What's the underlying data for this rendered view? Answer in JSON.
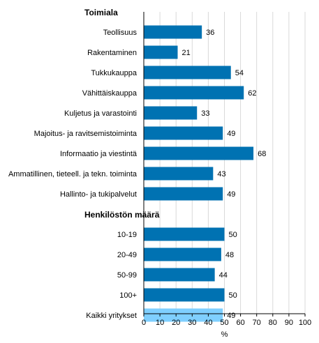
{
  "chart_data": {
    "type": "bar",
    "orientation": "horizontal",
    "groups": [
      {
        "title": "Toimiala",
        "items": [
          {
            "label": "Teollisuus",
            "value": 36
          },
          {
            "label": "Rakentaminen",
            "value": 21
          },
          {
            "label": "Tukkukauppa",
            "value": 54
          },
          {
            "label": "Vähittäiskauppa",
            "value": 62
          },
          {
            "label": "Kuljetus ja varastointi",
            "value": 33
          },
          {
            "label": "Majoitus- ja ravitsemistoiminta",
            "value": 49
          },
          {
            "label": "Informaatio ja viestintä",
            "value": 68
          },
          {
            "label": "Ammatillinen, tieteell. ja tekn. toiminta",
            "value": 43
          },
          {
            "label": "Hallinto- ja tukipalvelut",
            "value": 49
          }
        ]
      },
      {
        "title": "Henkilöstön määrä",
        "items": [
          {
            "label": "10-19",
            "value": 50
          },
          {
            "label": "20-49",
            "value": 48
          },
          {
            "label": "50-99",
            "value": 44
          },
          {
            "label": "100+",
            "value": 50
          },
          {
            "label": "Kaikki yritykset",
            "value": 49,
            "highlight": true
          }
        ]
      }
    ],
    "xlabel": "%",
    "xlim": [
      0,
      100
    ],
    "xticks": [
      0,
      10,
      20,
      30,
      40,
      50,
      60,
      70,
      80,
      90,
      100
    ],
    "grid": true,
    "colors": {
      "bar": "#0072b2",
      "highlight": "#7fcfff",
      "grid": "#d9d9d9"
    }
  }
}
